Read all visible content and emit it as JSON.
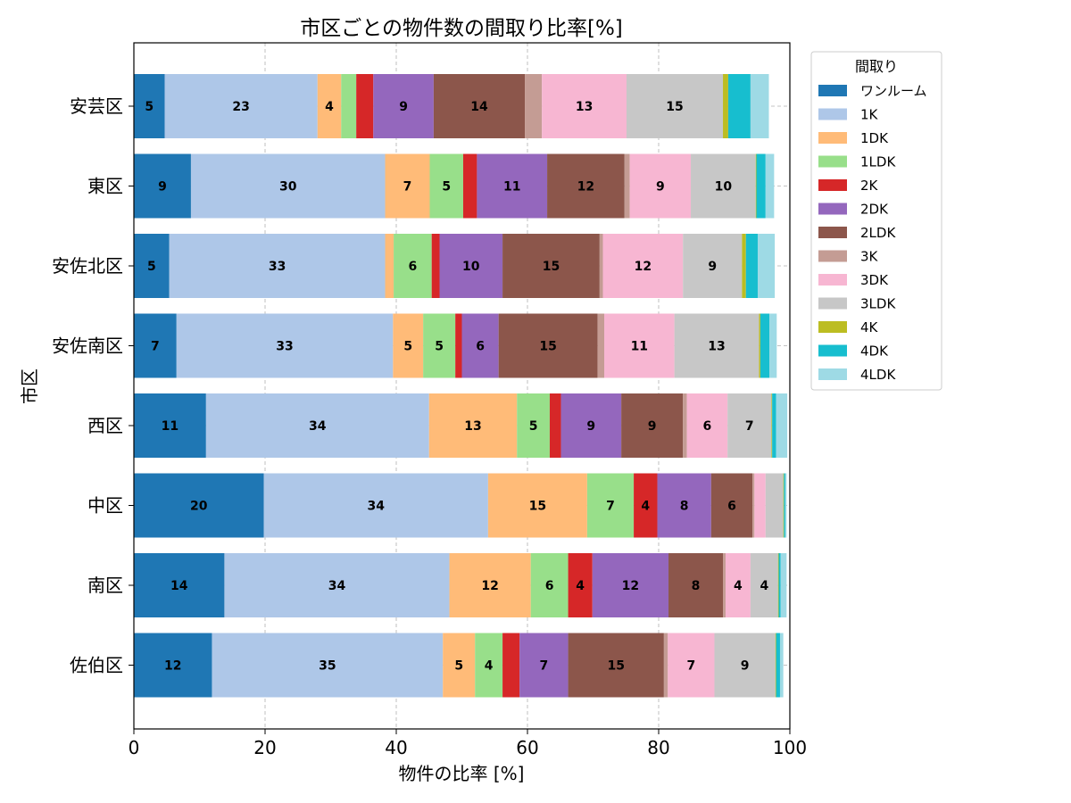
{
  "chart_data": {
    "type": "bar",
    "orientation": "horizontal",
    "stacked": true,
    "title": "市区ごとの物件数の間取り比率[%]",
    "xlabel": "物件の比率 [%]",
    "ylabel": "市区",
    "xlim": [
      0,
      100
    ],
    "xticks": [
      "0",
      "20",
      "40",
      "60",
      "80",
      "100"
    ],
    "grid": true,
    "legend_title": "間取り",
    "legend_position": "outside-top-right",
    "categories": [
      "安芸区",
      "東区",
      "安佐北区",
      "安佐南区",
      "西区",
      "中区",
      "南区",
      "佐伯区"
    ],
    "series": [
      {
        "name": "ワンルーム",
        "color": "#1f77b4",
        "values": [
          4.7,
          8.7,
          5.4,
          6.5,
          11.0,
          19.8,
          13.8,
          11.9
        ]
      },
      {
        "name": "1K",
        "color": "#aec7e8",
        "values": [
          23.3,
          29.6,
          32.9,
          33.0,
          34.0,
          34.2,
          34.3,
          35.2
        ]
      },
      {
        "name": "1DK",
        "color": "#ffbb78",
        "values": [
          3.6,
          6.8,
          1.3,
          4.6,
          13.4,
          15.1,
          12.4,
          4.9
        ]
      },
      {
        "name": "1LDK",
        "color": "#98df8a",
        "values": [
          2.3,
          5.1,
          5.8,
          4.9,
          5.0,
          7.1,
          5.7,
          4.2
        ]
      },
      {
        "name": "2K",
        "color": "#d62728",
        "values": [
          2.6,
          2.1,
          1.2,
          1.0,
          1.7,
          3.6,
          3.7,
          2.6
        ]
      },
      {
        "name": "2DK",
        "color": "#9467bd",
        "values": [
          9.2,
          10.7,
          9.6,
          5.6,
          9.2,
          8.2,
          11.6,
          7.4
        ]
      },
      {
        "name": "2LDK",
        "color": "#8c564b",
        "values": [
          13.9,
          11.8,
          14.8,
          15.1,
          9.4,
          6.3,
          8.3,
          14.6
        ]
      },
      {
        "name": "3K",
        "color": "#c49c94",
        "values": [
          2.6,
          0.8,
          0.5,
          1.0,
          0.6,
          0.3,
          0.4,
          0.6
        ]
      },
      {
        "name": "3DK",
        "color": "#f7b6d2",
        "values": [
          12.9,
          9.3,
          12.2,
          10.7,
          6.2,
          1.7,
          3.8,
          7.1
        ]
      },
      {
        "name": "3LDK",
        "color": "#c7c7c7",
        "values": [
          14.7,
          9.9,
          9.0,
          12.9,
          6.7,
          2.7,
          4.2,
          9.3
        ]
      },
      {
        "name": "4K",
        "color": "#bcbd22",
        "values": [
          0.8,
          0.1,
          0.6,
          0.2,
          0.1,
          0.1,
          0.1,
          0.1
        ]
      },
      {
        "name": "4DK",
        "color": "#17becf",
        "values": [
          3.4,
          1.4,
          1.8,
          1.4,
          0.6,
          0.2,
          0.3,
          0.6
        ]
      },
      {
        "name": "4LDK",
        "color": "#9edae5",
        "values": [
          2.8,
          1.3,
          2.6,
          1.1,
          1.7,
          0.2,
          0.9,
          0.5
        ]
      }
    ],
    "label_threshold": 3.5
  }
}
